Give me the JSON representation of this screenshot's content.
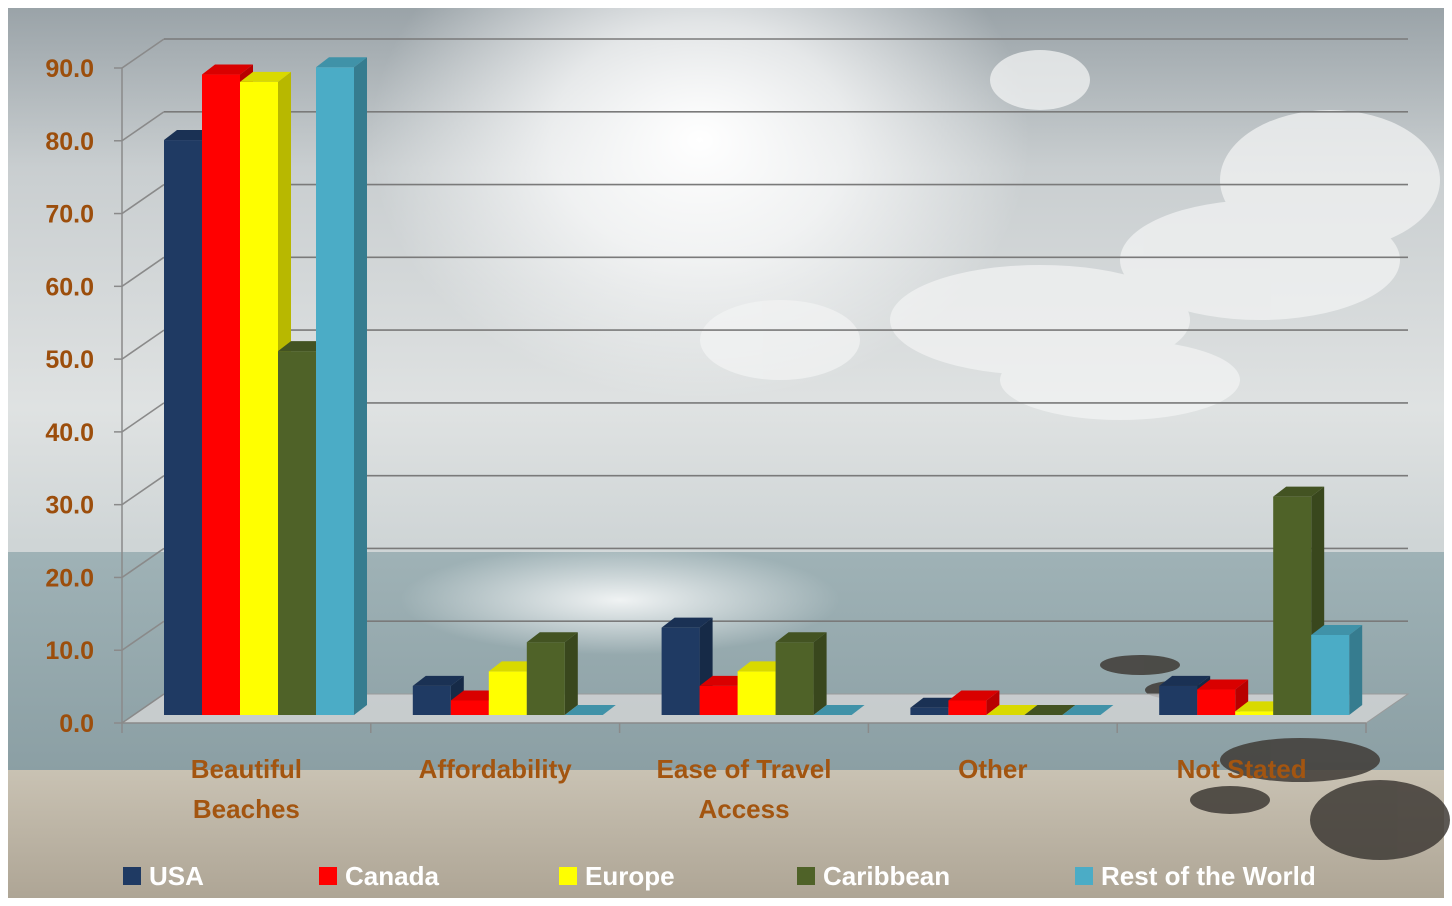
{
  "chart_data": {
    "type": "bar",
    "title": "",
    "xlabel": "",
    "ylabel": "",
    "ylim": [
      0,
      90
    ],
    "yticks": [
      "0.0",
      "10.0",
      "20.0",
      "30.0",
      "40.0",
      "50.0",
      "60.0",
      "70.0",
      "80.0",
      "90.0"
    ],
    "categories": [
      [
        "Beautiful",
        "Beaches"
      ],
      [
        "Affordability"
      ],
      [
        "Ease of Travel",
        "Access"
      ],
      [
        "Other"
      ],
      [
        "Not Stated"
      ]
    ],
    "series": [
      {
        "name": "USA",
        "color": "#1f3a63",
        "values": [
          79,
          4,
          12,
          1,
          4
        ]
      },
      {
        "name": "Canada",
        "color": "#ff0000",
        "values": [
          88,
          2,
          4,
          2,
          3.5
        ]
      },
      {
        "name": "Europe",
        "color": "#ffff00",
        "values": [
          87,
          6,
          6,
          0,
          0.5
        ]
      },
      {
        "name": "Caribbean",
        "color": "#4f6228",
        "values": [
          50,
          10,
          10,
          0,
          30
        ]
      },
      {
        "name": "Rest of the World",
        "color": "#4bacc6",
        "values": [
          89,
          0,
          0,
          0,
          11
        ]
      }
    ],
    "legend": "bottom",
    "grid": true,
    "style": "3d-clustered-column",
    "background": "beach-sky-photo"
  }
}
